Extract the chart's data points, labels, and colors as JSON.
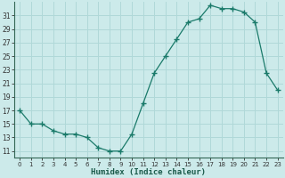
{
  "x": [
    0,
    1,
    2,
    3,
    4,
    5,
    6,
    7,
    8,
    9,
    10,
    11,
    12,
    13,
    14,
    15,
    16,
    17,
    18,
    19,
    20,
    21,
    22,
    23
  ],
  "y": [
    17,
    15,
    15,
    14,
    13.5,
    13.5,
    13,
    11.5,
    11,
    11,
    13.5,
    18,
    22.5,
    25,
    27.5,
    30,
    30.5,
    32.5,
    32,
    32,
    31.5,
    30,
    22.5,
    20
  ],
  "xlabel": "Humidex (Indice chaleur)",
  "xlim": [
    -0.5,
    23.5
  ],
  "ylim": [
    10,
    33
  ],
  "yticks": [
    11,
    13,
    15,
    17,
    19,
    21,
    23,
    25,
    27,
    29,
    31
  ],
  "xtick_labels": [
    "0",
    "1",
    "2",
    "3",
    "4",
    "5",
    "6",
    "7",
    "8",
    "9",
    "10",
    "11",
    "12",
    "13",
    "14",
    "15",
    "16",
    "17",
    "18",
    "19",
    "20",
    "21",
    "22",
    "23"
  ],
  "line_color": "#1a7a6a",
  "marker_color": "#1a7a6a",
  "bg_color": "#cceaea",
  "grid_color": "#b0d8d8",
  "axis_color": "#336655"
}
